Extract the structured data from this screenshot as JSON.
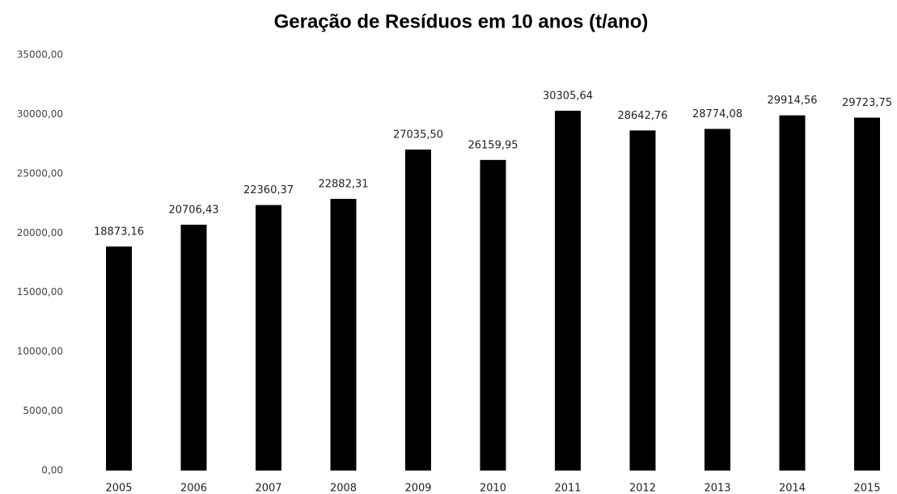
{
  "chart_data": {
    "type": "bar",
    "title": "Geração de Resíduos em 10 anos (t/ano)",
    "categories": [
      "2005",
      "2006",
      "2007",
      "2008",
      "2009",
      "2010",
      "2011",
      "2012",
      "2013",
      "2014",
      "2015"
    ],
    "values": [
      18873.16,
      20706.43,
      22360.37,
      22882.31,
      27035.5,
      26159.95,
      30305.64,
      28642.76,
      28774.08,
      29914.56,
      29723.75
    ],
    "value_labels": [
      "18873,16",
      "20706,43",
      "22360,37",
      "22882,31",
      "27035,50",
      "26159,95",
      "30305,64",
      "28642,76",
      "28774,08",
      "29914,56",
      "29723,75"
    ],
    "color": "#000000",
    "ylim": [
      0,
      35000
    ],
    "yticks": [
      {
        "value": 0,
        "label": "0,00"
      },
      {
        "value": 5000,
        "label": "5000,00"
      },
      {
        "value": 10000,
        "label": "10000,00"
      },
      {
        "value": 15000,
        "label": "15000,00"
      },
      {
        "value": 20000,
        "label": "20000,00"
      },
      {
        "value": 25000,
        "label": "25000,00"
      },
      {
        "value": 30000,
        "label": "30000,00"
      },
      {
        "value": 35000,
        "label": "35000,00"
      }
    ],
    "grid": false
  }
}
